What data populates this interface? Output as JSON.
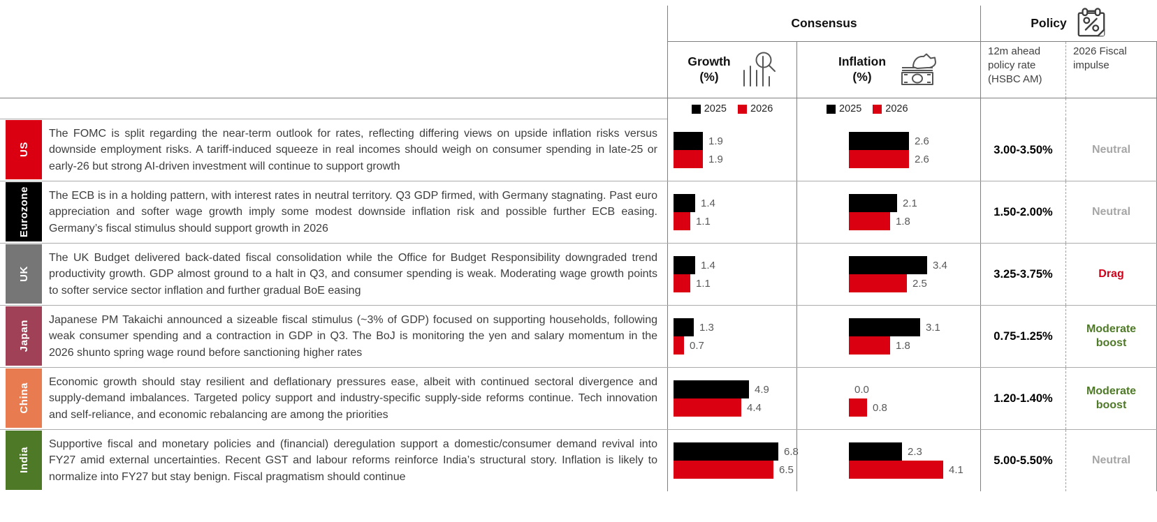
{
  "header": {
    "consensus": "Consensus",
    "policy": "Policy",
    "growth_label": "Growth",
    "growth_unit": "(%)",
    "inflation_label": "Inflation",
    "inflation_unit": "(%)",
    "policy_rate_header": "12m ahead policy rate (HSBC AM)",
    "fiscal_header": "2026 Fiscal impulse",
    "icons": {
      "policy": "calendar-percent-icon",
      "growth": "magnifier-over-bars-icon",
      "inflation": "hand-inserting-money-icon"
    }
  },
  "chart_data": [
    {
      "type": "bar",
      "orientation": "horizontal",
      "title": "Growth (%)",
      "categories": [
        "US",
        "Eurozone",
        "UK",
        "Japan",
        "China",
        "India"
      ],
      "series": [
        {
          "name": "2025",
          "color": "#000000",
          "values": [
            1.9,
            1.4,
            1.4,
            1.3,
            4.9,
            6.8
          ]
        },
        {
          "name": "2026",
          "color": "#DB0011",
          "values": [
            1.9,
            1.1,
            1.1,
            0.7,
            4.4,
            6.5
          ]
        }
      ],
      "legend_position": "top",
      "grid": false,
      "xlim": [
        0,
        7
      ]
    },
    {
      "type": "bar",
      "orientation": "horizontal",
      "title": "Inflation (%)",
      "categories": [
        "US",
        "Eurozone",
        "UK",
        "Japan",
        "China",
        "India"
      ],
      "series": [
        {
          "name": "2025",
          "color": "#000000",
          "values": [
            2.6,
            2.1,
            3.4,
            3.1,
            0.0,
            2.3
          ]
        },
        {
          "name": "2026",
          "color": "#DB0011",
          "values": [
            2.6,
            1.8,
            2.5,
            1.8,
            0.8,
            4.1
          ]
        }
      ],
      "legend_position": "top",
      "grid": false,
      "xlim": [
        0,
        4.5
      ]
    }
  ],
  "rows": [
    {
      "region": "US",
      "region_color": "#DB0011",
      "commentary": "The FOMC is split regarding the near-term outlook for rates, reflecting differing views on upside inflation risks versus downside employment risks. A tariff-induced squeeze in real incomes should weigh on consumer spending in late-25 or early-26 but strong AI-driven investment will continue to support growth",
      "policy_rate": "3.00-3.50%",
      "fiscal_impulse": "Neutral",
      "fiscal_color": "#A6A6A6"
    },
    {
      "region": "Eurozone",
      "region_color": "#000000",
      "commentary": "The ECB is in a holding pattern, with interest rates in neutral territory. Q3 GDP firmed, with Germany stagnating. Past euro appreciation and softer wage growth imply some modest downside inflation risk and possible further ECB easing. Germany’s fiscal stimulus should support growth in 2026",
      "policy_rate": "1.50-2.00%",
      "fiscal_impulse": "Neutral",
      "fiscal_color": "#A6A6A6"
    },
    {
      "region": "UK",
      "region_color": "#767676",
      "commentary": "The UK Budget delivered back-dated fiscal consolidation while the Office for Budget Responsibility downgraded trend productivity growth. GDP almost ground to a halt in Q3, and consumer spending is weak. Moderating wage growth points to softer service sector inflation and further gradual BoE easing",
      "policy_rate": "3.25-3.75%",
      "fiscal_impulse": "Drag",
      "fiscal_color": "#D0021B"
    },
    {
      "region": "Japan",
      "region_color": "#A04157",
      "commentary": "Japanese PM Takaichi announced a sizeable fiscal stimulus (~3% of GDP) focused on supporting households, following weak consumer spending and a contraction in GDP in Q3. The BoJ is monitoring the yen and salary momentum in the 2026 shunto spring wage round before sanctioning higher rates",
      "policy_rate": "0.75-1.25%",
      "fiscal_impulse": "Moderate boost",
      "fiscal_color": "#4E7A27"
    },
    {
      "region": "China",
      "region_color": "#E87C50",
      "commentary": "Economic growth should stay resilient and deflationary pressures ease, albeit with continued sectoral divergence and supply-demand imbalances. Targeted policy support and industry-specific supply-side reforms continue. Tech innovation and self-reliance, and economic rebalancing are among the priorities",
      "policy_rate": "1.20-1.40%",
      "fiscal_impulse": "Moderate boost",
      "fiscal_color": "#4E7A27"
    },
    {
      "region": "India",
      "region_color": "#4E7A27",
      "commentary": "Supportive fiscal and monetary policies and (financial) deregulation support a domestic/consumer demand revival into FY27 amid external uncertainties. Recent GST and labour reforms reinforce India’s structural story. Inflation is likely to normalize into FY27 but stay benign. Fiscal pragmatism should continue",
      "policy_rate": "5.00-5.50%",
      "fiscal_impulse": "Neutral",
      "fiscal_color": "#A6A6A6"
    }
  ]
}
